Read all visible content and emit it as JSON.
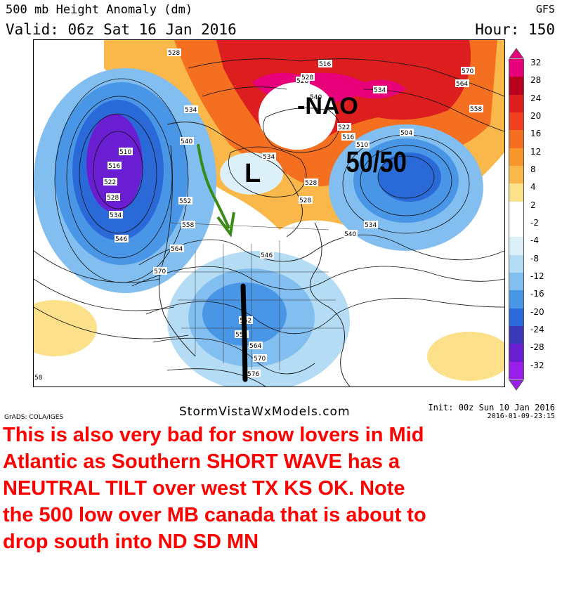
{
  "header": {
    "title": "500 mb Height Anomaly (dm)",
    "valid": "Valid: 06z Sat 16 Jan 2016",
    "model": "GFS",
    "hour": "Hour: 150"
  },
  "colorbar": {
    "arrow_top": "up-arrow",
    "arrow_bottom": "down-arrow",
    "levels": [
      {
        "label": "32",
        "color": "#e8007a"
      },
      {
        "label": "28",
        "color": "#b8001e"
      },
      {
        "label": "24",
        "color": "#dc1e1e"
      },
      {
        "label": "20",
        "color": "#f04020"
      },
      {
        "label": "16",
        "color": "#f56f20"
      },
      {
        "label": "12",
        "color": "#f7962a"
      },
      {
        "label": "8",
        "color": "#fab84a"
      },
      {
        "label": "4",
        "color": "#fde08a"
      },
      {
        "label": "2",
        "color": "#ffffff"
      },
      {
        "label": "-2",
        "color": "#ffffff"
      },
      {
        "label": "-4",
        "color": "#dcf0fa"
      },
      {
        "label": "-8",
        "color": "#b4dcf5"
      },
      {
        "label": "-12",
        "color": "#82bff0"
      },
      {
        "label": "-16",
        "color": "#4a96e6"
      },
      {
        "label": "-20",
        "color": "#2a6ad8"
      },
      {
        "label": "-24",
        "color": "#3a3ab8"
      },
      {
        "label": "-28",
        "color": "#6a1ed2"
      },
      {
        "label": "-32",
        "color": "#9a1eea"
      }
    ]
  },
  "map": {
    "annotations": {
      "nao": "-NAO",
      "low": "L",
      "fifty_fifty": "50/50"
    },
    "contour_labels": [
      {
        "text": "528"
      },
      {
        "text": "516"
      },
      {
        "text": "528"
      },
      {
        "text": "534"
      },
      {
        "text": "540"
      },
      {
        "text": "528"
      },
      {
        "text": "522"
      },
      {
        "text": "516"
      },
      {
        "text": "510"
      },
      {
        "text": "504"
      },
      {
        "text": "570"
      },
      {
        "text": "564"
      },
      {
        "text": "558"
      },
      {
        "text": "534"
      },
      {
        "text": "540"
      },
      {
        "text": "534"
      },
      {
        "text": "528"
      },
      {
        "text": "528"
      },
      {
        "text": "534"
      },
      {
        "text": "540"
      },
      {
        "text": "510"
      },
      {
        "text": "516"
      },
      {
        "text": "522"
      },
      {
        "text": "528"
      },
      {
        "text": "534"
      },
      {
        "text": "546"
      },
      {
        "text": "552"
      },
      {
        "text": "558"
      },
      {
        "text": "564"
      },
      {
        "text": "570"
      },
      {
        "text": "546"
      },
      {
        "text": "552"
      },
      {
        "text": "558"
      },
      {
        "text": "564"
      },
      {
        "text": "570"
      },
      {
        "text": "576"
      },
      {
        "text": "58"
      }
    ],
    "colors": {
      "green_arrow": "#3a8a1a",
      "black_axis": "#000000"
    }
  },
  "footer": {
    "grads": "GrADS: COLA/IGES",
    "site": "StormVistaWxModels.com",
    "init": "Init: 00z Sun 10 Jan 2016",
    "stamp": "2016-01-09-23:15"
  },
  "comment": "This is also very bad  for  snow lovers in Mid\nAtlantic  as Southern  SHORT WAVE  has a\nNEUTRAL TILT  over  west TX  KS OK.  Note\n the  500 low over MB canada that is about to\ndrop south into  ND SD MN"
}
